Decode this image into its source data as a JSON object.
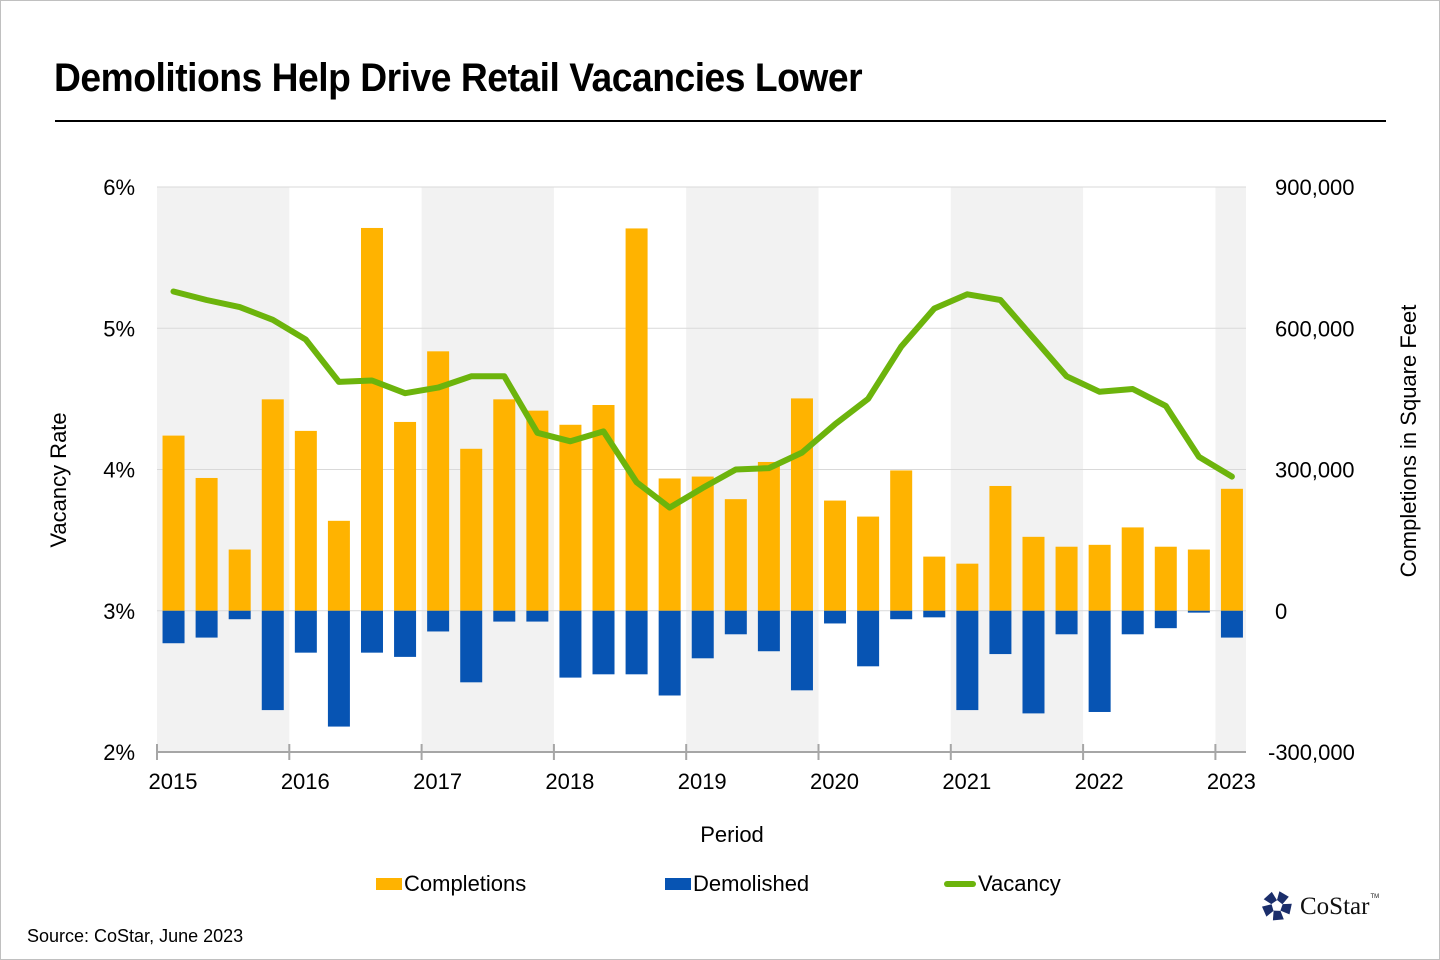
{
  "title": "Demolitions Help Drive Retail Vacancies Lower",
  "source": "Source: CoStar, June 2023",
  "logo": {
    "text": "CoStar",
    "tm": "TM"
  },
  "colors": {
    "completions": "#FFB300",
    "demolished": "#0754B3",
    "vacancy": "#6CB40C",
    "band": "#F2F2F2",
    "negative_tick": "#C00000",
    "logo": "#1B2E6B"
  },
  "chart_data": {
    "type": "bar",
    "title": "Demolitions Help Drive Retail Vacancies Lower",
    "xlabel": "Period",
    "ylabel": "Vacancy Rate",
    "y2label": "Completions in Square Feet",
    "ylim": [
      2,
      6
    ],
    "y2lim": [
      -300000,
      900000
    ],
    "yticks": [
      "6%",
      "5%",
      "4%",
      "3%",
      "2%"
    ],
    "y2ticks": [
      "900,000",
      "600,000",
      "300,000",
      "0",
      "-300,000"
    ],
    "xticks": [
      "2015",
      "2016",
      "2017",
      "2018",
      "2019",
      "2020",
      "2021",
      "2022",
      "2023"
    ],
    "grid": true,
    "legend_position": "bottom",
    "legend": [
      "Completions",
      "Demolished",
      "Vacancy"
    ],
    "categories": [
      "2015 Q1",
      "2015 Q2",
      "2015 Q3",
      "2015 Q4",
      "2016 Q1",
      "2016 Q2",
      "2016 Q3",
      "2016 Q4",
      "2017 Q1",
      "2017 Q2",
      "2017 Q3",
      "2017 Q4",
      "2018 Q1",
      "2018 Q2",
      "2018 Q3",
      "2018 Q4",
      "2019 Q1",
      "2019 Q2",
      "2019 Q3",
      "2019 Q4",
      "2020 Q1",
      "2020 Q2",
      "2020 Q3",
      "2020 Q4",
      "2021 Q1",
      "2021 Q2",
      "2021 Q3",
      "2021 Q4",
      "2022 Q1",
      "2022 Q2",
      "2022 Q3",
      "2022 Q4",
      "2023 Q1"
    ],
    "series": [
      {
        "name": "Completions",
        "type": "bar",
        "axis": "right",
        "values": [
          372000,
          282000,
          130000,
          449000,
          382000,
          191000,
          813000,
          401000,
          551000,
          344000,
          449000,
          425000,
          395000,
          437000,
          812000,
          281000,
          285000,
          237000,
          316000,
          451000,
          234000,
          200000,
          298000,
          115000,
          100000,
          265000,
          157000,
          136000,
          140000,
          177000,
          136000,
          130000,
          259000
        ]
      },
      {
        "name": "Demolished",
        "type": "bar",
        "axis": "right",
        "values": [
          -69000,
          -57000,
          -18000,
          -211000,
          -89000,
          -246000,
          -89000,
          -98000,
          -44000,
          -152000,
          -23000,
          -23000,
          -142000,
          -135000,
          -135000,
          -180000,
          -101000,
          -50000,
          -86000,
          -169000,
          -27000,
          -118000,
          -18000,
          -14000,
          -211000,
          -92000,
          -218000,
          -50000,
          -215000,
          -50000,
          -37000,
          -4000,
          -57000
        ]
      },
      {
        "name": "Vacancy",
        "type": "line",
        "axis": "left",
        "unit": "%",
        "values": [
          5.26,
          5.2,
          5.15,
          5.06,
          4.92,
          4.62,
          4.63,
          4.54,
          4.58,
          4.66,
          4.66,
          4.26,
          4.2,
          4.27,
          3.91,
          3.73,
          3.87,
          4.0,
          4.01,
          4.12,
          4.32,
          4.5,
          4.87,
          5.14,
          5.24,
          5.2,
          4.93,
          4.66,
          4.55,
          4.57,
          4.45,
          4.09,
          3.95
        ]
      }
    ]
  }
}
